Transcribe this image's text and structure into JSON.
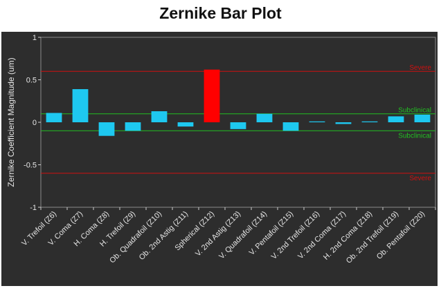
{
  "chart_data": {
    "type": "bar",
    "title": "Zernike Bar Plot",
    "xlabel": "",
    "ylabel": "Zernike Coefficient Magnitude (um)",
    "ylim": [
      -1,
      1
    ],
    "yticks": [
      "-1",
      "-0.5",
      "0",
      "0.5",
      "1"
    ],
    "ytick_values": [
      -1,
      -0.5,
      0,
      0.5,
      1
    ],
    "grid": false,
    "categories": [
      "V. Trefoil (Z6)",
      "V. Coma (Z7)",
      "H. Coma (Z8)",
      "H. Trefoil (Z9)",
      "Ob. Quadrafoil (Z10)",
      "Ob. 2nd Astig (Z11)",
      "Spherical (Z12)",
      "V. 2nd Astig (Z13)",
      "V. Quadrafoil (Z14)",
      "V. Pentafoil (Z15)",
      "V. 2nd Trefoil (Z16)",
      "V. 2nd Coma (Z17)",
      "H. 2nd Coma (Z18)",
      "Ob. 2nd Trefoil (Z19)",
      "Ob. Pentafoil (Z20)"
    ],
    "values": [
      0.11,
      0.39,
      -0.16,
      -0.1,
      0.13,
      -0.05,
      0.62,
      -0.08,
      0.1,
      -0.1,
      0.01,
      -0.02,
      0.01,
      0.07,
      0.09
    ],
    "bar_colors": [
      "#1ec8f0",
      "#1ec8f0",
      "#1ec8f0",
      "#1ec8f0",
      "#1ec8f0",
      "#1ec8f0",
      "#ff0000",
      "#1ec8f0",
      "#1ec8f0",
      "#1ec8f0",
      "#1ec8f0",
      "#1ec8f0",
      "#1ec8f0",
      "#1ec8f0",
      "#1ec8f0"
    ],
    "reference_lines": [
      {
        "value": 0.6,
        "label": "Severe",
        "color": "#d01010"
      },
      {
        "value": -0.6,
        "label": "Severe",
        "color": "#d01010"
      },
      {
        "value": 0.1,
        "label": "Subclinical",
        "color": "#22c022"
      },
      {
        "value": -0.1,
        "label": "Subclinical",
        "color": "#22c022"
      }
    ]
  }
}
